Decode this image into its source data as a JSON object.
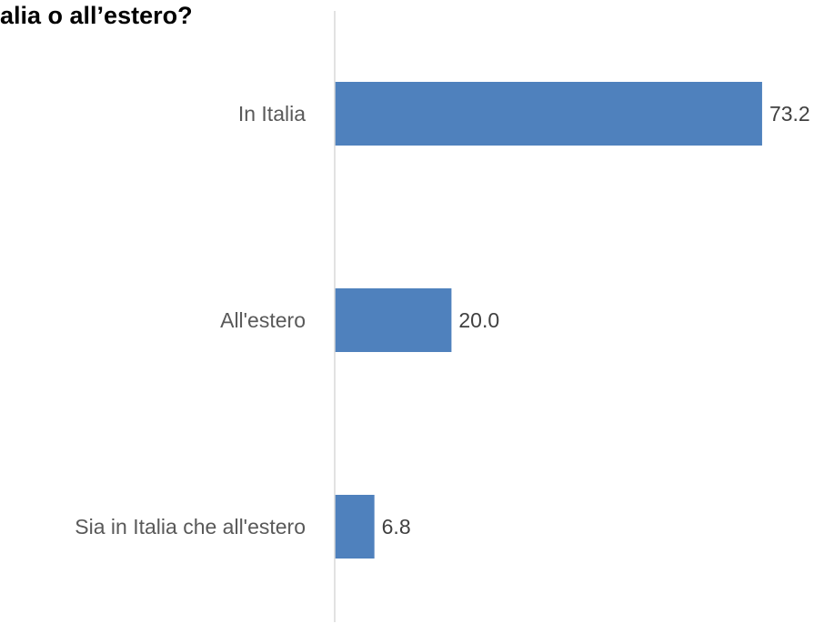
{
  "chart_data": {
    "type": "bar",
    "orientation": "horizontal",
    "title": "alia o all’estero?",
    "categories": [
      "In Italia",
      "All'estero",
      "Sia in Italia che all'estero"
    ],
    "values": [
      73.2,
      20.0,
      6.8
    ],
    "value_labels": [
      "73.2",
      "20.0",
      "6.8"
    ],
    "xlim": [
      0,
      80
    ],
    "grid": false,
    "legend": "none",
    "bar_color": "#4f81bd",
    "axis_color": "#d9d9d9"
  }
}
